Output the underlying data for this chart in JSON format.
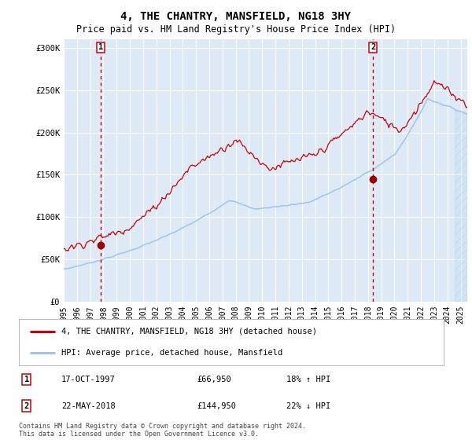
{
  "title": "4, THE CHANTRY, MANSFIELD, NG18 3HY",
  "subtitle": "Price paid vs. HM Land Registry's House Price Index (HPI)",
  "xlim_start": 1995.0,
  "xlim_end": 2025.5,
  "ylim": [
    0,
    310000
  ],
  "yticks": [
    0,
    50000,
    100000,
    150000,
    200000,
    250000,
    300000
  ],
  "ytick_labels": [
    "£0",
    "£50K",
    "£100K",
    "£150K",
    "£200K",
    "£250K",
    "£300K"
  ],
  "xticks": [
    1995,
    1996,
    1997,
    1998,
    1999,
    2000,
    2001,
    2002,
    2003,
    2004,
    2005,
    2006,
    2007,
    2008,
    2009,
    2010,
    2011,
    2012,
    2013,
    2014,
    2015,
    2016,
    2017,
    2018,
    2019,
    2020,
    2021,
    2022,
    2023,
    2024,
    2025
  ],
  "hpi_color": "#a0c4e8",
  "price_color": "#cc0000",
  "marker_color": "#990000",
  "dashed_line_color": "#cc0000",
  "plot_bg_color": "#ddeaf6",
  "grid_color": "#ffffff",
  "transaction1_date": 1997.79,
  "transaction1_price": 66950,
  "transaction2_date": 2018.38,
  "transaction2_price": 144950,
  "legend_label1": "4, THE CHANTRY, MANSFIELD, NG18 3HY (detached house)",
  "legend_label2": "HPI: Average price, detached house, Mansfield",
  "table_row1_date": "17-OCT-1997",
  "table_row1_price": "£66,950",
  "table_row1_hpi": "18% ↑ HPI",
  "table_row2_date": "22-MAY-2018",
  "table_row2_price": "£144,950",
  "table_row2_hpi": "22% ↓ HPI",
  "footnote": "Contains HM Land Registry data © Crown copyright and database right 2024.\nThis data is licensed under the Open Government Licence v3.0."
}
